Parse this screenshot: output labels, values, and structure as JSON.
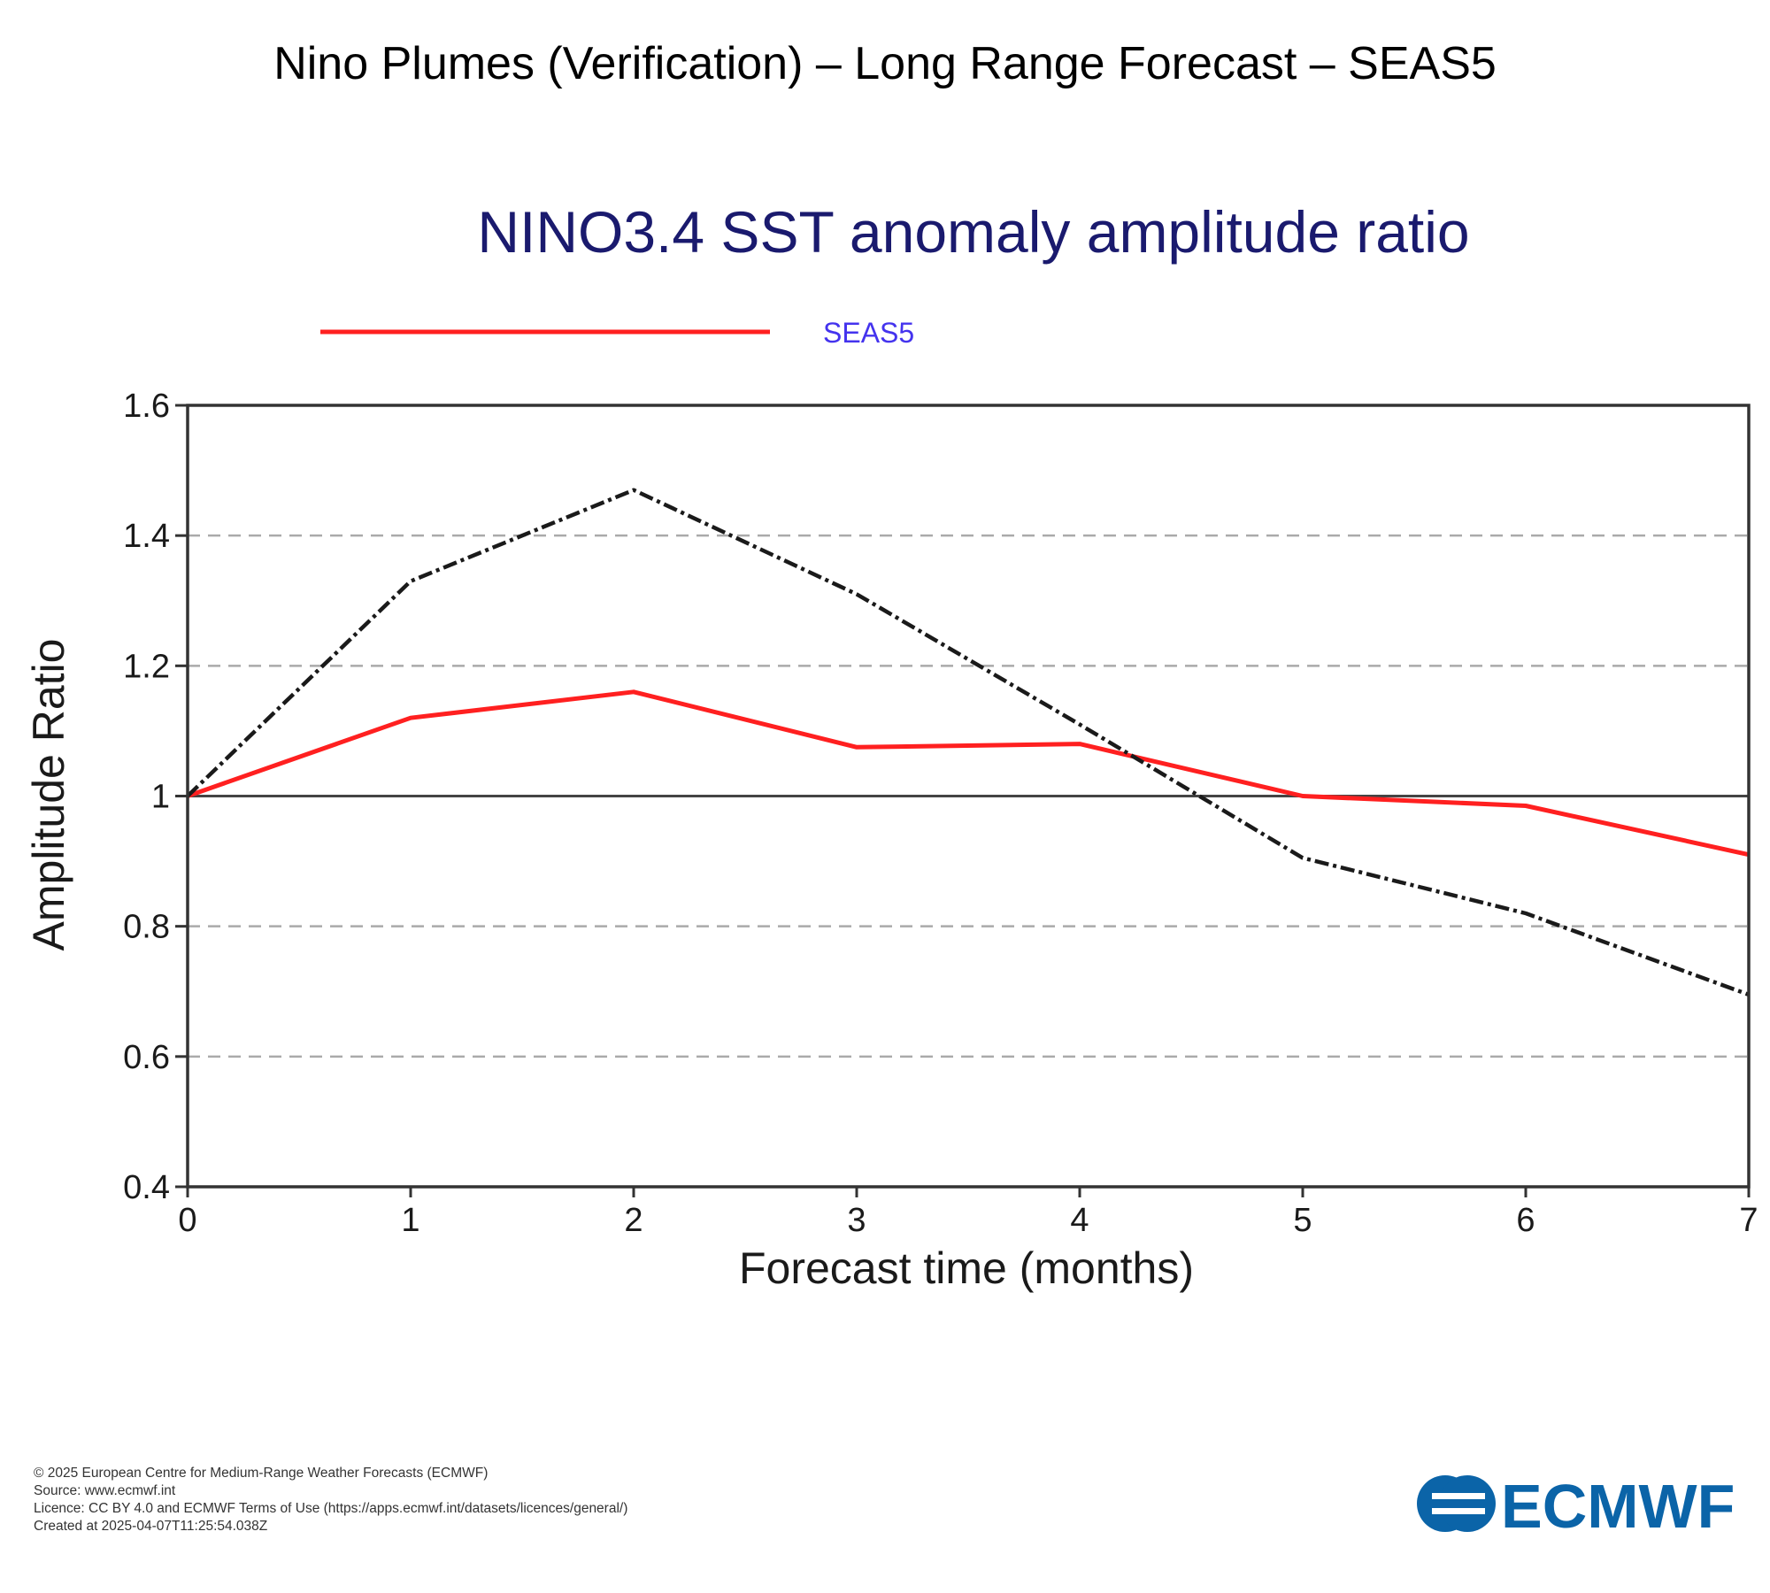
{
  "page": {
    "title": "Nino Plumes (Verification) – Long Range Forecast – SEAS5"
  },
  "chart_data": {
    "type": "line",
    "title": "NINO3.4 SST anomaly amplitude ratio",
    "xlabel": "Forecast time (months)",
    "ylabel": "Amplitude Ratio",
    "x": [
      0,
      1,
      2,
      3,
      4,
      5,
      6,
      7
    ],
    "xlim": [
      0,
      7
    ],
    "ylim": [
      0.4,
      1.6
    ],
    "x_ticks": [
      "0",
      "1",
      "2",
      "3",
      "4",
      "5",
      "6",
      "7"
    ],
    "y_ticks": [
      "0.4",
      "0.6",
      "0.8",
      "1",
      "1.2",
      "1.4",
      "1.6"
    ],
    "y_tick_values": [
      0.4,
      0.6,
      0.8,
      1.0,
      1.2,
      1.4,
      1.6
    ],
    "grid": "dashed horizontal",
    "reference_line": 1.0,
    "legend_position": "top",
    "series": [
      {
        "name": "SEAS5",
        "color": "#ff2020",
        "style": "solid",
        "values": [
          1.0,
          1.12,
          1.16,
          1.075,
          1.08,
          1.0,
          0.985,
          0.91
        ]
      },
      {
        "color": "#1a1a1a",
        "style": "dash-dot",
        "values": [
          1.0,
          1.33,
          1.47,
          1.31,
          1.11,
          0.905,
          0.82,
          0.695
        ]
      }
    ]
  },
  "footer": {
    "copyright": "© 2025 European Centre for Medium-Range Weather Forecasts (ECMWF)",
    "source": "Source: www.ecmwf.int",
    "licence": "Licence: CC BY 4.0 and ECMWF Terms of Use (https://apps.ecmwf.int/datasets/licences/general/)",
    "created": "Created at 2025-04-07T11:25:54.038Z"
  },
  "logo": {
    "text": "ECMWF",
    "color": "#0b64a8"
  }
}
